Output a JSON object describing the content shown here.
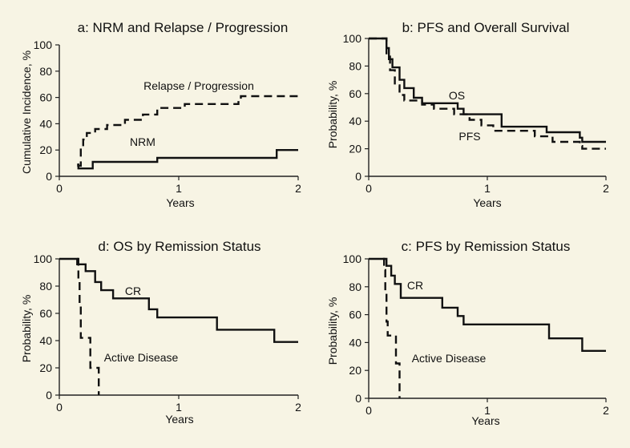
{
  "chart_data": [
    {
      "type": "line",
      "title": "a: NRM and Relapse / Progression",
      "xlabel": "Years",
      "ylabel": "Cumulative Incidence, %",
      "xlim": [
        0,
        2
      ],
      "ylim": [
        0,
        100
      ],
      "xticks": [
        "0",
        "1",
        "2"
      ],
      "yticks": [
        "0",
        "20",
        "40",
        "60",
        "80",
        "100"
      ],
      "grid": false,
      "series": [
        {
          "name": "Relapse / Progression",
          "style": "dashed",
          "points": [
            [
              0.15,
              8
            ],
            [
              0.18,
              22
            ],
            [
              0.2,
              28
            ],
            [
              0.23,
              33
            ],
            [
              0.3,
              36
            ],
            [
              0.4,
              39
            ],
            [
              0.55,
              43
            ],
            [
              0.7,
              47
            ],
            [
              0.82,
              52
            ],
            [
              1.0,
              52
            ],
            [
              1.05,
              55
            ],
            [
              1.5,
              58
            ],
            [
              1.52,
              61
            ],
            [
              2.0,
              61
            ]
          ]
        },
        {
          "name": "NRM",
          "style": "solid",
          "points": [
            [
              0.15,
              9
            ],
            [
              0.16,
              6
            ],
            [
              0.25,
              6
            ],
            [
              0.28,
              11
            ],
            [
              0.8,
              11
            ],
            [
              0.82,
              14
            ],
            [
              1.8,
              14
            ],
            [
              1.82,
              20
            ],
            [
              2.0,
              20
            ]
          ]
        }
      ],
      "annotations": [
        "Relapse / Progression",
        "NRM"
      ]
    },
    {
      "type": "line",
      "title": "b: PFS and Overall Survival",
      "xlabel": "Years",
      "ylabel": "Probability, %",
      "xlim": [
        0,
        2
      ],
      "ylim": [
        0,
        100
      ],
      "xticks": [
        "0",
        "1",
        "2"
      ],
      "yticks": [
        "0",
        "20",
        "40",
        "60",
        "80",
        "100"
      ],
      "grid": false,
      "series": [
        {
          "name": "OS",
          "style": "solid",
          "points": [
            [
              0.0,
              100
            ],
            [
              0.14,
              100
            ],
            [
              0.15,
              93
            ],
            [
              0.17,
              85
            ],
            [
              0.2,
              79
            ],
            [
              0.26,
              70
            ],
            [
              0.3,
              64
            ],
            [
              0.38,
              57
            ],
            [
              0.45,
              53
            ],
            [
              0.7,
              53
            ],
            [
              0.75,
              49
            ],
            [
              0.8,
              45
            ],
            [
              1.1,
              45
            ],
            [
              1.12,
              36
            ],
            [
              1.5,
              32
            ],
            [
              1.78,
              28
            ],
            [
              1.8,
              25
            ],
            [
              2.0,
              25
            ]
          ]
        },
        {
          "name": "PFS",
          "style": "dashed",
          "points": [
            [
              0.0,
              100
            ],
            [
              0.13,
              100
            ],
            [
              0.15,
              88
            ],
            [
              0.18,
              77
            ],
            [
              0.22,
              66
            ],
            [
              0.26,
              59
            ],
            [
              0.3,
              55
            ],
            [
              0.4,
              55
            ],
            [
              0.45,
              52
            ],
            [
              0.5,
              52
            ],
            [
              0.55,
              49
            ],
            [
              0.72,
              45
            ],
            [
              0.85,
              41
            ],
            [
              0.95,
              37
            ],
            [
              1.0,
              37
            ],
            [
              1.05,
              33
            ],
            [
              1.4,
              29
            ],
            [
              1.55,
              25
            ],
            [
              1.78,
              22
            ],
            [
              1.8,
              20
            ],
            [
              2.0,
              20
            ]
          ]
        }
      ],
      "annotations": [
        "OS",
        "PFS"
      ]
    },
    {
      "type": "line",
      "title": "d: OS by Remission Status",
      "xlabel": "Years",
      "ylabel": "Probability, %",
      "xlim": [
        0,
        2
      ],
      "ylim": [
        0,
        100
      ],
      "xticks": [
        "0",
        "1",
        "2"
      ],
      "yticks": [
        "0",
        "20",
        "40",
        "60",
        "80",
        "100"
      ],
      "grid": false,
      "series": [
        {
          "name": "CR",
          "style": "solid",
          "points": [
            [
              0.0,
              100
            ],
            [
              0.14,
              100
            ],
            [
              0.15,
              96
            ],
            [
              0.22,
              91
            ],
            [
              0.3,
              83
            ],
            [
              0.35,
              77
            ],
            [
              0.45,
              71
            ],
            [
              0.7,
              71
            ],
            [
              0.75,
              63
            ],
            [
              0.82,
              57
            ],
            [
              1.3,
              57
            ],
            [
              1.32,
              48
            ],
            [
              1.78,
              48
            ],
            [
              1.8,
              39
            ],
            [
              2.0,
              39
            ]
          ]
        },
        {
          "name": "Active Disease",
          "style": "dashed",
          "points": [
            [
              0.15,
              100
            ],
            [
              0.16,
              83
            ],
            [
              0.17,
              66
            ],
            [
              0.18,
              42
            ],
            [
              0.25,
              42
            ],
            [
              0.26,
              20
            ],
            [
              0.33,
              0
            ]
          ]
        }
      ],
      "annotations": [
        "CR",
        "Active Disease"
      ]
    },
    {
      "type": "line",
      "title": "c: PFS by Remission Status",
      "xlabel": "Years",
      "ylabel": "Probability, %",
      "xlim": [
        0,
        2
      ],
      "ylim": [
        0,
        100
      ],
      "xticks": [
        "0",
        "1",
        "2"
      ],
      "yticks": [
        "0",
        "20",
        "40",
        "60",
        "80",
        "100"
      ],
      "grid": false,
      "series": [
        {
          "name": "CR",
          "style": "solid",
          "points": [
            [
              0.0,
              100
            ],
            [
              0.14,
              100
            ],
            [
              0.15,
              95
            ],
            [
              0.19,
              88
            ],
            [
              0.22,
              82
            ],
            [
              0.27,
              72
            ],
            [
              0.6,
              72
            ],
            [
              0.62,
              65
            ],
            [
              0.75,
              59
            ],
            [
              0.8,
              53
            ],
            [
              1.5,
              53
            ],
            [
              1.52,
              43
            ],
            [
              1.78,
              43
            ],
            [
              1.8,
              34
            ],
            [
              2.0,
              34
            ]
          ]
        },
        {
          "name": "Active Disease",
          "style": "dashed",
          "points": [
            [
              0.12,
              100
            ],
            [
              0.13,
              92
            ],
            [
              0.14,
              75
            ],
            [
              0.15,
              55
            ],
            [
              0.16,
              45
            ],
            [
              0.22,
              45
            ],
            [
              0.23,
              25
            ],
            [
              0.26,
              0
            ]
          ]
        }
      ],
      "annotations": [
        "CR",
        "Active Disease"
      ]
    }
  ]
}
